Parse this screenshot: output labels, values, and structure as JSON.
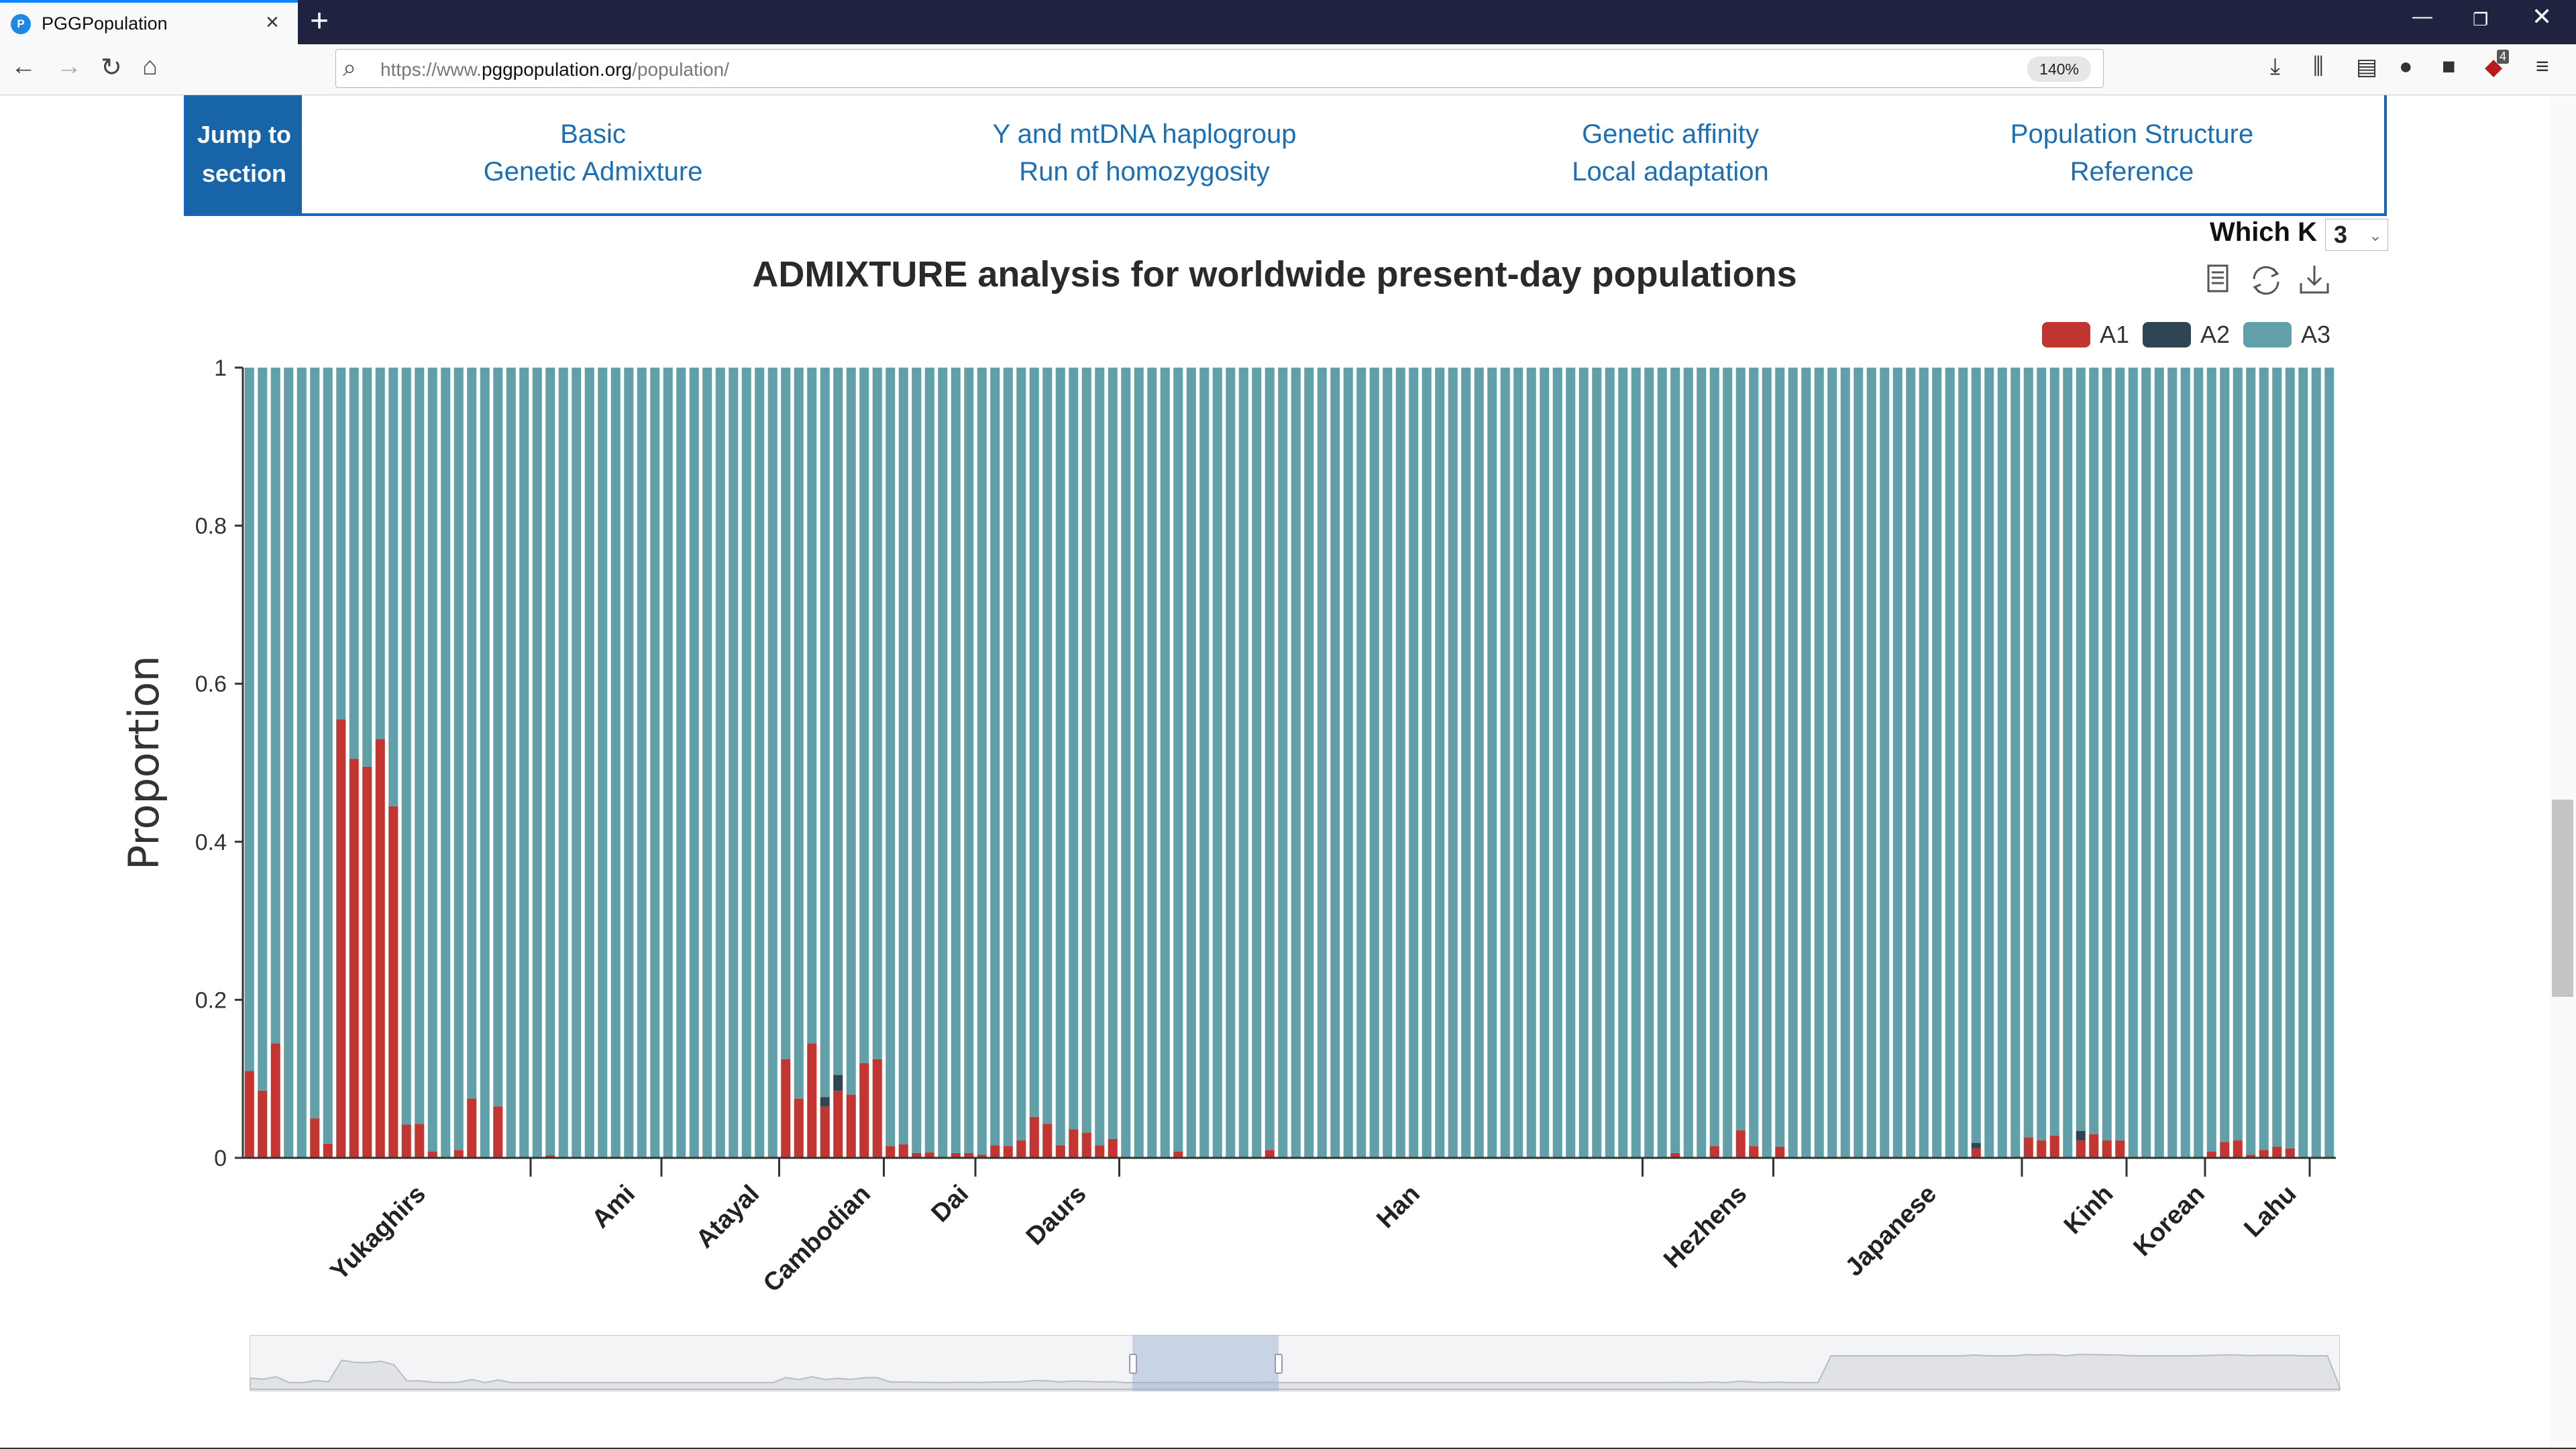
{
  "browser": {
    "tab_title": "PGGPopulation",
    "tab_favicon_letter": "P",
    "url_prefix": "https://www.",
    "url_domain": "pggpopulation.org",
    "url_path": "/population/",
    "zoom": "140%",
    "badge_count": "4"
  },
  "jump": {
    "label": "Jump to section",
    "links": [
      {
        "line1": "Basic",
        "line2": "Genetic Admixture"
      },
      {
        "line1": "Y and mtDNA haplogroup",
        "line2": "Run of homozygosity"
      },
      {
        "line1": "Genetic affinity",
        "line2": "Local adaptation"
      },
      {
        "line1": "Population Structure",
        "line2": "Reference"
      }
    ]
  },
  "which_k": {
    "label": "Which K",
    "value": "3"
  },
  "chart_data": {
    "type": "bar",
    "stacked": true,
    "title": "ADMIXTURE analysis for worldwide present-day populations",
    "ylabel": "Proportion",
    "ylim": [
      0,
      1
    ],
    "yticks": [
      "0",
      "0.2",
      "0.4",
      "0.6",
      "0.8",
      "1"
    ],
    "legend": [
      {
        "name": "A1",
        "color": "#c23531"
      },
      {
        "name": "A2",
        "color": "#2f4554"
      },
      {
        "name": "A3",
        "color": "#61a0a8"
      }
    ],
    "legend_position": "top-right",
    "n_samples": 160,
    "groups": [
      {
        "name": "Yukaghirs",
        "start": 0,
        "end": 22
      },
      {
        "name": "Ami",
        "start": 22,
        "end": 32
      },
      {
        "name": "Atayal",
        "start": 32,
        "end": 41
      },
      {
        "name": "Cambodian",
        "start": 41,
        "end": 49
      },
      {
        "name": "Dai",
        "start": 49,
        "end": 56
      },
      {
        "name": "Daurs",
        "start": 56,
        "end": 67
      },
      {
        "name": "Han",
        "start": 67,
        "end": 107
      },
      {
        "name": "Hezhens",
        "start": 107,
        "end": 117
      },
      {
        "name": "Japanese",
        "start": 117,
        "end": 136
      },
      {
        "name": "Kinh",
        "start": 136,
        "end": 144
      },
      {
        "name": "Korean",
        "start": 144,
        "end": 150
      },
      {
        "name": "Lahu",
        "start": 150,
        "end": 158
      }
    ],
    "A1": [
      0.11,
      0.085,
      0.145,
      0,
      0,
      0.05,
      0.018,
      0.555,
      0.505,
      0.495,
      0.53,
      0.445,
      0.042,
      0.043,
      0.008,
      0,
      0.01,
      0.075,
      0,
      0.065,
      0,
      0,
      0,
      0.003,
      0,
      0,
      0,
      0,
      0,
      0,
      0,
      0,
      0,
      0,
      0,
      0,
      0,
      0,
      0,
      0,
      0,
      0.125,
      0.075,
      0.145,
      0.065,
      0.085,
      0.08,
      0.12,
      0.125,
      0.015,
      0.017,
      0.006,
      0.007,
      0,
      0.006,
      0.006,
      0.004,
      0.016,
      0.015,
      0.022,
      0.052,
      0.043,
      0.016,
      0.036,
      0.032,
      0.016,
      0.024,
      0,
      0,
      0,
      0,
      0.008,
      0,
      0,
      0,
      0,
      0,
      0,
      0.01,
      0,
      0,
      0,
      0,
      0,
      0,
      0,
      0,
      0,
      0,
      0,
      0,
      0,
      0,
      0,
      0,
      0,
      0,
      0,
      0,
      0,
      0,
      0,
      0,
      0,
      0,
      0,
      0,
      0,
      0,
      0.006,
      0,
      0,
      0.015,
      0,
      0.035,
      0.015,
      0,
      0.014,
      0,
      0,
      0,
      0,
      0,
      0,
      0,
      0,
      0,
      0,
      0,
      0,
      0,
      0,
      0.012,
      0,
      0,
      0,
      0.026,
      0.022,
      0.028,
      0,
      0.022,
      0.03,
      0.022,
      0.022,
      0,
      0,
      0,
      0,
      0,
      0,
      0.008,
      0.02,
      0.022,
      0.004,
      0.01,
      0.014,
      0.012,
      0,
      0,
      0
    ],
    "A2": [
      0,
      0,
      0,
      0,
      0,
      0,
      0,
      0,
      0,
      0,
      0,
      0,
      0,
      0,
      0,
      0,
      0,
      0,
      0,
      0,
      0,
      0,
      0,
      0,
      0,
      0,
      0,
      0,
      0,
      0,
      0,
      0,
      0,
      0,
      0,
      0,
      0,
      0,
      0,
      0,
      0,
      0,
      0,
      0,
      0.012,
      0.02,
      0,
      0,
      0,
      0,
      0,
      0,
      0,
      0,
      0,
      0,
      0,
      0,
      0,
      0,
      0,
      0,
      0,
      0,
      0,
      0,
      0,
      0,
      0,
      0,
      0,
      0,
      0,
      0,
      0,
      0,
      0,
      0,
      0,
      0,
      0,
      0,
      0,
      0,
      0,
      0,
      0,
      0,
      0,
      0,
      0,
      0,
      0,
      0,
      0,
      0,
      0,
      0,
      0,
      0,
      0,
      0,
      0,
      0,
      0,
      0,
      0,
      0,
      0,
      0,
      0,
      0,
      0,
      0,
      0,
      0,
      0,
      0,
      0,
      0,
      0,
      0,
      0,
      0,
      0,
      0,
      0,
      0,
      0,
      0,
      0,
      0,
      0.007,
      0,
      0,
      0,
      0,
      0,
      0,
      0,
      0.012,
      0,
      0,
      0,
      0,
      0,
      0,
      0,
      0,
      0,
      0,
      0,
      0,
      0,
      0,
      0,
      0,
      0,
      0,
      0
    ]
  }
}
